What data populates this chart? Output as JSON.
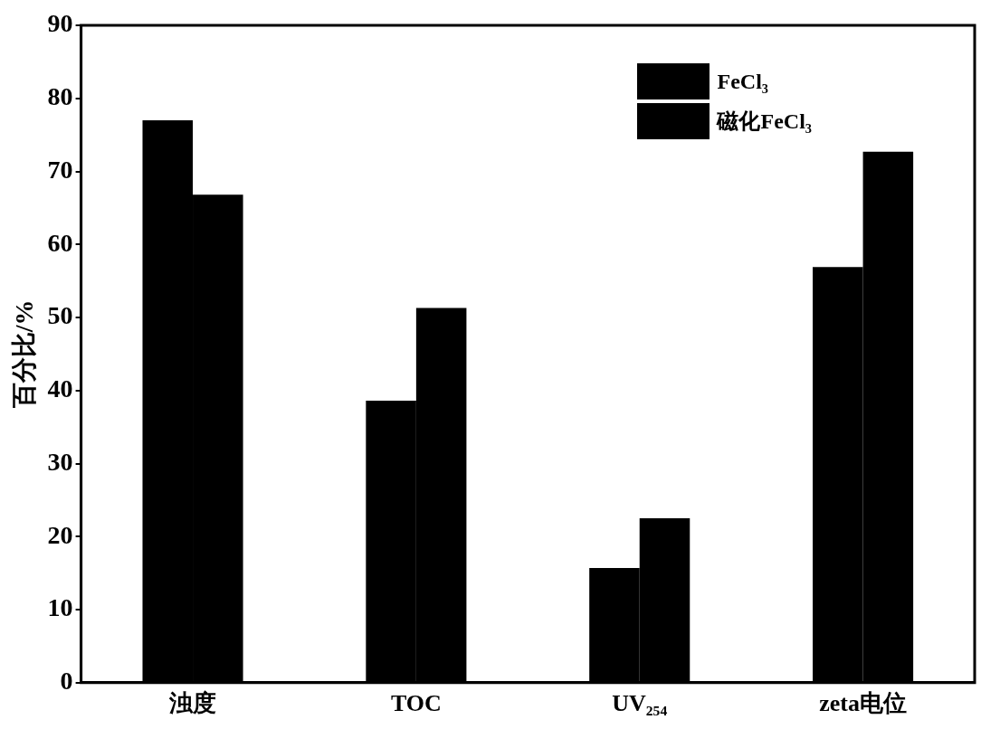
{
  "chart_data": {
    "type": "bar",
    "ylabel": "百分比/%",
    "categories": [
      "浊度",
      "TOC",
      "UV₂₅₄",
      "zeta电位"
    ],
    "series": [
      {
        "name": "FeCl₃",
        "color": "#000000",
        "values": [
          77,
          38.6,
          15.7,
          56.9
        ]
      },
      {
        "name": "磁化FeCl₃",
        "color": "#000000",
        "values": [
          66.8,
          51.3,
          22.5,
          72.7
        ]
      }
    ],
    "ylim": [
      0,
      90
    ],
    "yticks": [
      0,
      10,
      20,
      30,
      40,
      50,
      60,
      70,
      80,
      90
    ],
    "grid": false,
    "legend": "top right"
  }
}
